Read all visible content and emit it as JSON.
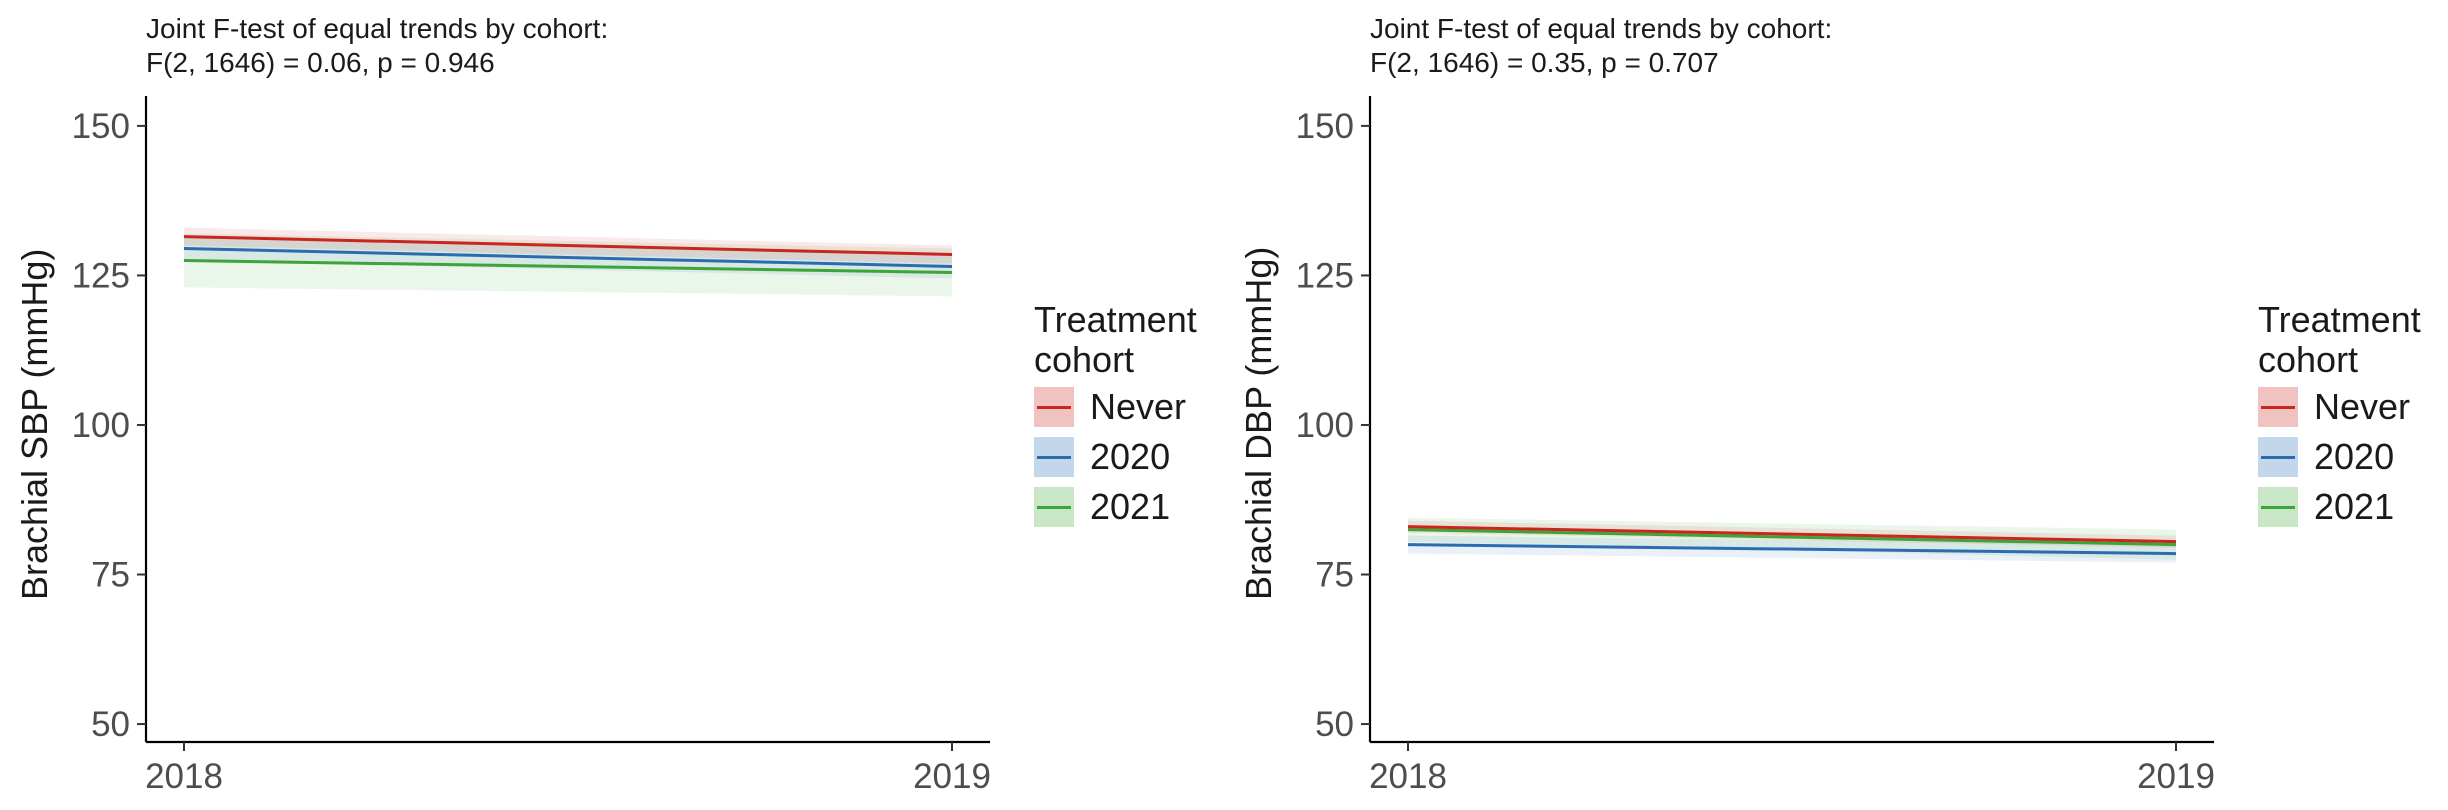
{
  "legend": {
    "title_line1": "Treatment",
    "title_line2": "cohort",
    "items": [
      {
        "label": "Never",
        "color": "#c8261e"
      },
      {
        "label": "2020",
        "color": "#2b6cb0"
      },
      {
        "label": "2021",
        "color": "#3da537"
      }
    ]
  },
  "chart_data": [
    {
      "type": "line",
      "title_line1": "Joint F-test of equal trends by cohort:",
      "title_line2": "F(2, 1646) = 0.06, p = 0.946",
      "xlabel": "",
      "ylabel": "Brachial SBP (mmHg)",
      "x": [
        2018,
        2019
      ],
      "x_ticks": [
        "2018",
        "2019"
      ],
      "y_ticks": [
        50,
        75,
        100,
        125,
        150
      ],
      "ylim": [
        47,
        155
      ],
      "grid": false,
      "legend_position": "right",
      "series": [
        {
          "name": "Never",
          "values": [
            131.5,
            128.5
          ],
          "ci_lower": [
            130.0,
            127.0
          ],
          "ci_upper": [
            133.0,
            130.0
          ],
          "color": "#c8261e"
        },
        {
          "name": "2020",
          "values": [
            129.5,
            126.5
          ],
          "ci_lower": [
            127.5,
            124.5
          ],
          "ci_upper": [
            131.5,
            128.5
          ],
          "color": "#2b6cb0"
        },
        {
          "name": "2021",
          "values": [
            127.5,
            125.5
          ],
          "ci_lower": [
            123.0,
            121.5
          ],
          "ci_upper": [
            132.0,
            129.5
          ],
          "color": "#3da537"
        }
      ]
    },
    {
      "type": "line",
      "title_line1": "Joint F-test of equal trends by cohort:",
      "title_line2": "F(2, 1646) = 0.35, p = 0.707",
      "xlabel": "",
      "ylabel": "Brachial DBP (mmHg)",
      "x": [
        2018,
        2019
      ],
      "x_ticks": [
        "2018",
        "2019"
      ],
      "y_ticks": [
        50,
        75,
        100,
        125,
        150
      ],
      "ylim": [
        47,
        155
      ],
      "grid": false,
      "legend_position": "right",
      "series": [
        {
          "name": "Never",
          "values": [
            83.0,
            80.5
          ],
          "ci_lower": [
            82.0,
            79.5
          ],
          "ci_upper": [
            84.0,
            81.5
          ],
          "color": "#c8261e"
        },
        {
          "name": "2020",
          "values": [
            80.0,
            78.5
          ],
          "ci_lower": [
            78.5,
            77.0
          ],
          "ci_upper": [
            81.5,
            80.0
          ],
          "color": "#2b6cb0"
        },
        {
          "name": "2021",
          "values": [
            82.5,
            80.0
          ],
          "ci_lower": [
            80.5,
            77.5
          ],
          "ci_upper": [
            84.5,
            82.5
          ],
          "color": "#3da537"
        }
      ]
    }
  ]
}
